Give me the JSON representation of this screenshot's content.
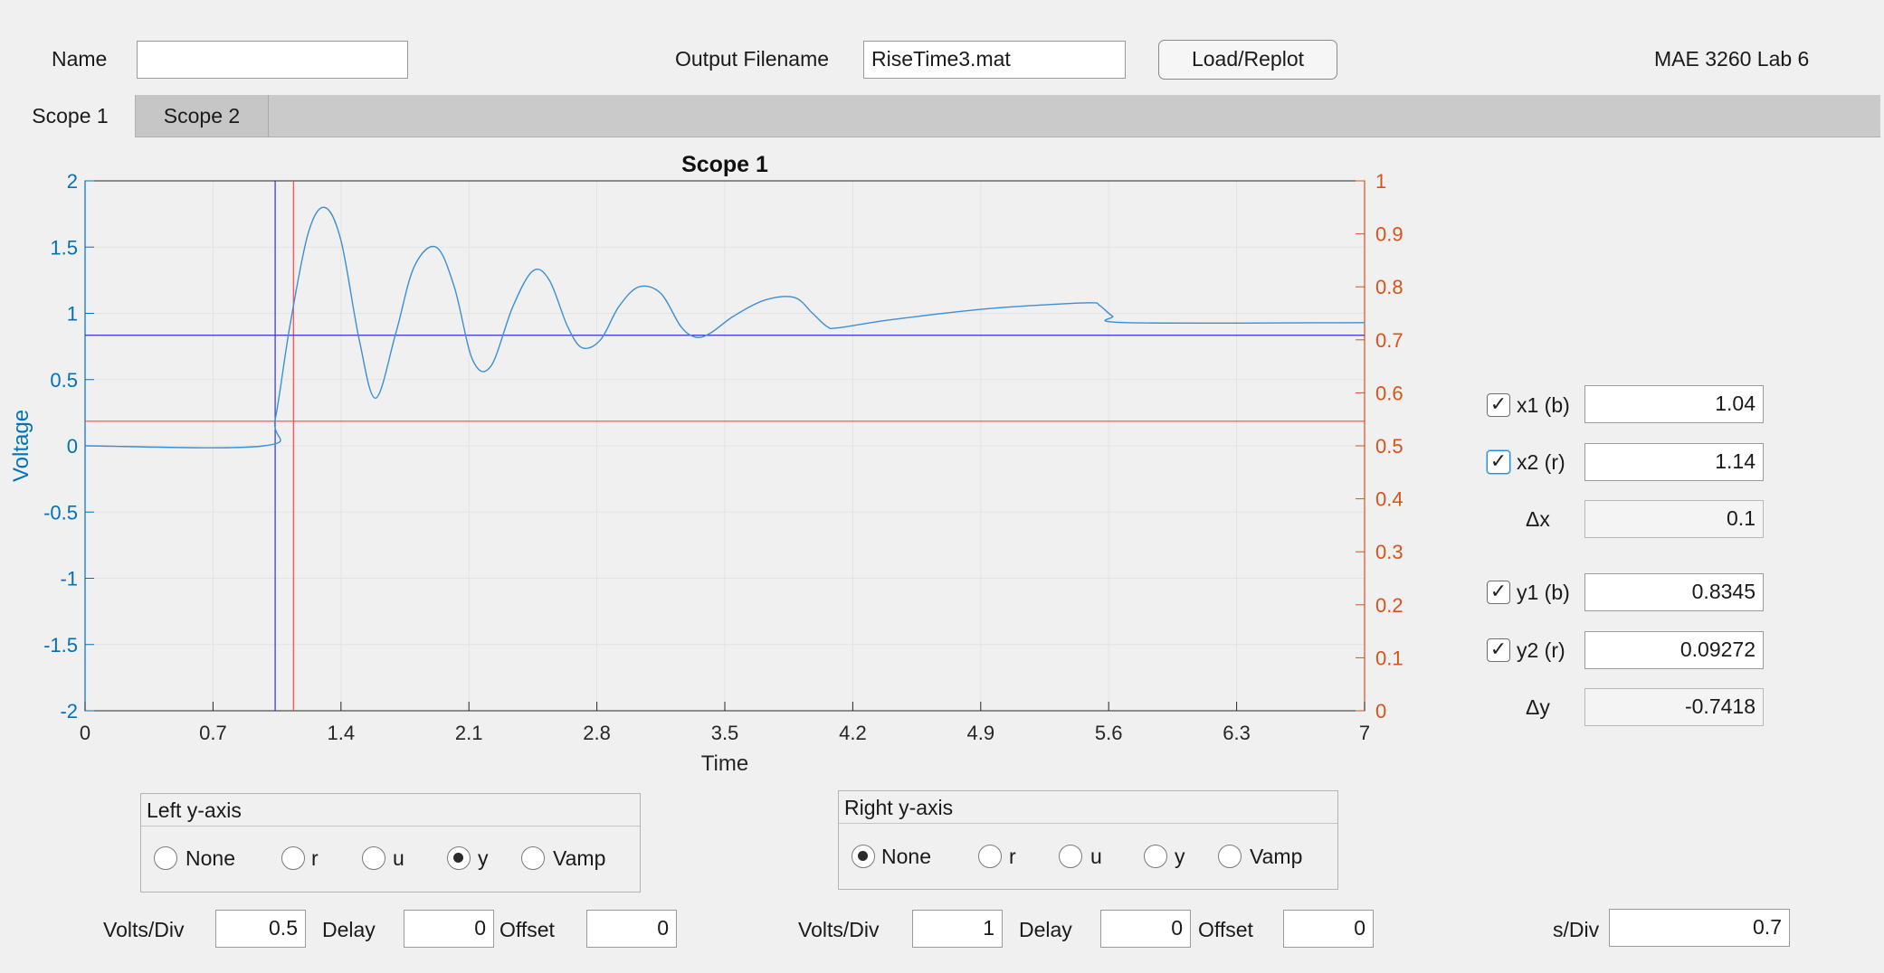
{
  "header": {
    "name_label": "Name",
    "name_value": "",
    "output_label": "Output Filename",
    "output_value": "RiseTime3.mat",
    "load_button": "Load/Replot",
    "lab_title": "MAE 3260 Lab 6"
  },
  "tabs": [
    {
      "label": "Scope 1",
      "active": true
    },
    {
      "label": "Scope 2",
      "active": false
    }
  ],
  "chart_data": {
    "type": "line",
    "title": "Scope 1",
    "xlabel": "Time",
    "ylabel": "Voltage",
    "xlim": [
      0,
      7
    ],
    "ylim": [
      -2,
      2
    ],
    "y2lim": [
      0,
      1
    ],
    "x_ticks": [
      "0",
      "0.7",
      "1.4",
      "2.1",
      "2.8",
      "3.5",
      "4.2",
      "4.9",
      "5.6",
      "6.3",
      "7"
    ],
    "y_ticks": [
      "2",
      "1.5",
      "1",
      "0.5",
      "0",
      "-0.5",
      "-1",
      "-1.5",
      "-2"
    ],
    "y2_ticks": [
      "1",
      "0.9",
      "0.8",
      "0.7",
      "0.6",
      "0.5",
      "0.4",
      "0.3",
      "0.2",
      "0.1",
      "0"
    ],
    "grid": true,
    "colors": {
      "left_axis": "#0072bd",
      "right_axis": "#d95319",
      "signal": "#3b8fd4",
      "cursor_b": "#3333cc",
      "cursor_r": "#ff4444"
    },
    "series": [
      {
        "x": [
          0,
          0.98,
          1.04,
          1.12,
          1.22,
          1.31,
          1.4,
          1.5,
          1.59,
          1.7,
          1.8,
          1.92,
          2.02,
          2.12,
          2.22,
          2.34,
          2.45,
          2.54,
          2.64,
          2.72,
          2.82,
          2.92,
          3.03,
          3.15,
          3.26,
          3.34,
          3.42,
          3.55,
          3.72,
          3.88,
          3.98,
          4.06,
          4.12,
          4.4,
          4.9,
          5.2,
          5.5,
          5.55,
          5.62,
          5.7,
          7.0
        ],
        "y": [
          0,
          0,
          0.2,
          0.9,
          1.6,
          1.8,
          1.55,
          0.8,
          0.36,
          0.85,
          1.35,
          1.5,
          1.2,
          0.65,
          0.6,
          1.05,
          1.32,
          1.25,
          0.9,
          0.74,
          0.8,
          1.05,
          1.2,
          1.15,
          0.9,
          0.82,
          0.85,
          0.98,
          1.1,
          1.12,
          1.0,
          0.9,
          0.89,
          0.95,
          1.03,
          1.06,
          1.08,
          1.06,
          0.98,
          0.93,
          0.93
        ]
      }
    ],
    "cursors": {
      "x1": 1.04,
      "x2": 1.14,
      "y1": 0.8345,
      "y2_right": 0.5464
    }
  },
  "cursors_panel": {
    "x1_label": "x1 (b)",
    "x1_value": "1.04",
    "x2_label": "x2 (r)",
    "x2_value": "1.14",
    "dx_label": "Δx",
    "dx_value": "0.1",
    "y1_label": "y1 (b)",
    "y1_value": "0.8345",
    "y2_label": "y2 (r)",
    "y2_value": "0.09272",
    "dy_label": "Δy",
    "dy_value": "-0.7418"
  },
  "left_axis_group": {
    "title": "Left y-axis",
    "options": [
      "None",
      "r",
      "u",
      "y",
      "Vamp"
    ],
    "selected": "y"
  },
  "right_axis_group": {
    "title": "Right y-axis",
    "options": [
      "None",
      "r",
      "u",
      "y",
      "Vamp"
    ],
    "selected": "None"
  },
  "bottom_controls": {
    "volts_div_label": "Volts/Div",
    "delay_label": "Delay",
    "offset_label": "Offset",
    "left_volts_div": "0.5",
    "left_delay": "0",
    "left_offset": "0",
    "right_volts_div": "1",
    "right_delay": "0",
    "right_offset": "0",
    "s_div_label": "s/Div",
    "s_div_value": "0.7"
  }
}
